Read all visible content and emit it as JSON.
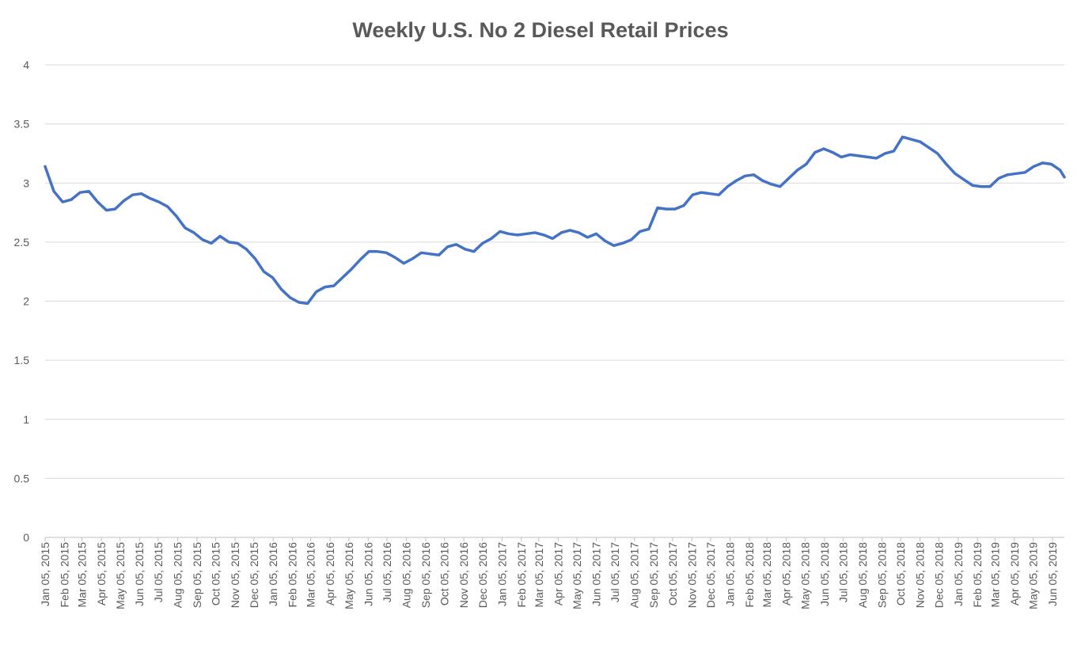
{
  "chart_data": {
    "type": "line",
    "title": "Weekly U.S. No 2 Diesel Retail Prices",
    "x": [
      "2015-01-05",
      "2015-01-19",
      "2015-02-02",
      "2015-02-16",
      "2015-03-02",
      "2015-03-16",
      "2015-03-30",
      "2015-04-13",
      "2015-04-27",
      "2015-05-11",
      "2015-05-25",
      "2015-06-08",
      "2015-06-22",
      "2015-07-06",
      "2015-07-20",
      "2015-08-03",
      "2015-08-17",
      "2015-08-31",
      "2015-09-14",
      "2015-09-28",
      "2015-10-12",
      "2015-10-26",
      "2015-11-09",
      "2015-11-23",
      "2015-12-07",
      "2015-12-21",
      "2016-01-04",
      "2016-01-18",
      "2016-02-01",
      "2016-02-15",
      "2016-02-29",
      "2016-03-14",
      "2016-03-28",
      "2016-04-11",
      "2016-04-25",
      "2016-05-09",
      "2016-05-23",
      "2016-06-06",
      "2016-06-20",
      "2016-07-04",
      "2016-07-18",
      "2016-08-01",
      "2016-08-15",
      "2016-08-29",
      "2016-09-12",
      "2016-09-26",
      "2016-10-10",
      "2016-10-24",
      "2016-11-07",
      "2016-11-21",
      "2016-12-05",
      "2016-12-19",
      "2017-01-02",
      "2017-01-16",
      "2017-01-30",
      "2017-02-13",
      "2017-02-27",
      "2017-03-13",
      "2017-03-27",
      "2017-04-10",
      "2017-04-24",
      "2017-05-08",
      "2017-05-22",
      "2017-06-05",
      "2017-06-19",
      "2017-07-03",
      "2017-07-17",
      "2017-07-31",
      "2017-08-14",
      "2017-08-28",
      "2017-09-11",
      "2017-09-25",
      "2017-10-09",
      "2017-10-23",
      "2017-11-06",
      "2017-11-20",
      "2017-12-04",
      "2017-12-18",
      "2018-01-01",
      "2018-01-15",
      "2018-01-29",
      "2018-02-12",
      "2018-02-26",
      "2018-03-12",
      "2018-03-26",
      "2018-04-09",
      "2018-04-23",
      "2018-05-07",
      "2018-05-21",
      "2018-06-04",
      "2018-06-18",
      "2018-07-02",
      "2018-07-16",
      "2018-07-30",
      "2018-08-13",
      "2018-08-27",
      "2018-09-10",
      "2018-09-24",
      "2018-10-08",
      "2018-10-22",
      "2018-11-05",
      "2018-11-19",
      "2018-12-03",
      "2018-12-17",
      "2018-12-31",
      "2019-01-14",
      "2019-01-28",
      "2019-02-11",
      "2019-02-25",
      "2019-03-11",
      "2019-03-25",
      "2019-04-08",
      "2019-04-22",
      "2019-05-06",
      "2019-05-20",
      "2019-06-03",
      "2019-06-17",
      "2019-06-24"
    ],
    "series": [
      {
        "name": "Weekly U.S. No 2 Diesel Retail Prices",
        "color": "#4472c4",
        "values": [
          3.14,
          2.93,
          2.84,
          2.86,
          2.92,
          2.93,
          2.84,
          2.77,
          2.78,
          2.85,
          2.9,
          2.91,
          2.87,
          2.84,
          2.8,
          2.72,
          2.62,
          2.58,
          2.52,
          2.49,
          2.55,
          2.5,
          2.49,
          2.44,
          2.36,
          2.25,
          2.2,
          2.1,
          2.03,
          1.99,
          1.98,
          2.08,
          2.12,
          2.13,
          2.2,
          2.27,
          2.35,
          2.42,
          2.42,
          2.41,
          2.37,
          2.32,
          2.36,
          2.41,
          2.4,
          2.39,
          2.46,
          2.48,
          2.44,
          2.42,
          2.49,
          2.53,
          2.59,
          2.57,
          2.56,
          2.57,
          2.58,
          2.56,
          2.53,
          2.58,
          2.6,
          2.58,
          2.54,
          2.57,
          2.51,
          2.47,
          2.49,
          2.52,
          2.59,
          2.61,
          2.79,
          2.78,
          2.78,
          2.81,
          2.9,
          2.92,
          2.91,
          2.9,
          2.97,
          3.02,
          3.06,
          3.07,
          3.02,
          2.99,
          2.97,
          3.04,
          3.11,
          3.16,
          3.26,
          3.29,
          3.26,
          3.22,
          3.24,
          3.23,
          3.22,
          3.21,
          3.25,
          3.27,
          3.39,
          3.37,
          3.35,
          3.3,
          3.25,
          3.16,
          3.08,
          3.03,
          2.98,
          2.97,
          2.97,
          3.04,
          3.07,
          3.08,
          3.09,
          3.14,
          3.17,
          3.16,
          3.11,
          3.05
        ]
      }
    ],
    "xlim": [
      "2015-01-05",
      "2019-06-24"
    ],
    "xticks": [
      {
        "value": "2015-01-05",
        "label": "Jan 05, 2015"
      },
      {
        "value": "2015-02-05",
        "label": "Feb 05, 2015"
      },
      {
        "value": "2015-03-05",
        "label": "Mar 05, 2015"
      },
      {
        "value": "2015-04-05",
        "label": "Apr 05, 2015"
      },
      {
        "value": "2015-05-05",
        "label": "May 05, 2015"
      },
      {
        "value": "2015-06-05",
        "label": "Jun 05, 2015"
      },
      {
        "value": "2015-07-05",
        "label": "Jul 05, 2015"
      },
      {
        "value": "2015-08-05",
        "label": "Aug 05, 2015"
      },
      {
        "value": "2015-09-05",
        "label": "Sep 05, 2015"
      },
      {
        "value": "2015-10-05",
        "label": "Oct 05, 2015"
      },
      {
        "value": "2015-11-05",
        "label": "Nov 05, 2015"
      },
      {
        "value": "2015-12-05",
        "label": "Dec 05, 2015"
      },
      {
        "value": "2016-01-05",
        "label": "Jan 05, 2016"
      },
      {
        "value": "2016-02-05",
        "label": "Feb 05, 2016"
      },
      {
        "value": "2016-03-05",
        "label": "Mar 05, 2016"
      },
      {
        "value": "2016-04-05",
        "label": "Apr 05, 2016"
      },
      {
        "value": "2016-05-05",
        "label": "May 05, 2016"
      },
      {
        "value": "2016-06-05",
        "label": "Jun 05, 2016"
      },
      {
        "value": "2016-07-05",
        "label": "Jul 05, 2016"
      },
      {
        "value": "2016-08-05",
        "label": "Aug 05, 2016"
      },
      {
        "value": "2016-09-05",
        "label": "Sep 05, 2016"
      },
      {
        "value": "2016-10-05",
        "label": "Oct 05, 2016"
      },
      {
        "value": "2016-11-05",
        "label": "Nov 05, 2016"
      },
      {
        "value": "2016-12-05",
        "label": "Dec 05, 2016"
      },
      {
        "value": "2017-01-05",
        "label": "Jan 05, 2017"
      },
      {
        "value": "2017-02-05",
        "label": "Feb 05, 2017"
      },
      {
        "value": "2017-03-05",
        "label": "Mar 05, 2017"
      },
      {
        "value": "2017-04-05",
        "label": "Apr 05, 2017"
      },
      {
        "value": "2017-05-05",
        "label": "May 05, 2017"
      },
      {
        "value": "2017-06-05",
        "label": "Jun 05, 2017"
      },
      {
        "value": "2017-07-05",
        "label": "Jul 05, 2017"
      },
      {
        "value": "2017-08-05",
        "label": "Aug 05, 2017"
      },
      {
        "value": "2017-09-05",
        "label": "Sep 05, 2017"
      },
      {
        "value": "2017-10-05",
        "label": "Oct 05, 2017"
      },
      {
        "value": "2017-11-05",
        "label": "Nov 05, 2017"
      },
      {
        "value": "2017-12-05",
        "label": "Dec 05, 2017"
      },
      {
        "value": "2018-01-05",
        "label": "Jan 05, 2018"
      },
      {
        "value": "2018-02-05",
        "label": "Feb 05, 2018"
      },
      {
        "value": "2018-03-05",
        "label": "Mar 05, 2018"
      },
      {
        "value": "2018-04-05",
        "label": "Apr 05, 2018"
      },
      {
        "value": "2018-05-05",
        "label": "May 05, 2018"
      },
      {
        "value": "2018-06-05",
        "label": "Jun 05, 2018"
      },
      {
        "value": "2018-07-05",
        "label": "Jul 05, 2018"
      },
      {
        "value": "2018-08-05",
        "label": "Aug 05, 2018"
      },
      {
        "value": "2018-09-05",
        "label": "Sep 05, 2018"
      },
      {
        "value": "2018-10-05",
        "label": "Oct 05, 2018"
      },
      {
        "value": "2018-11-05",
        "label": "Nov 05, 2018"
      },
      {
        "value": "2018-12-05",
        "label": "Dec 05, 2018"
      },
      {
        "value": "2019-01-05",
        "label": "Jan 05, 2019"
      },
      {
        "value": "2019-02-05",
        "label": "Feb 05, 2019"
      },
      {
        "value": "2019-03-05",
        "label": "Mar 05, 2019"
      },
      {
        "value": "2019-04-05",
        "label": "Apr 05, 2019"
      },
      {
        "value": "2019-05-05",
        "label": "May 05, 2019"
      },
      {
        "value": "2019-06-05",
        "label": "Jun 05, 2019"
      }
    ],
    "ylim": [
      0,
      4
    ],
    "yticks": [
      0,
      0.5,
      1,
      1.5,
      2,
      2.5,
      3,
      3.5,
      4
    ],
    "grid": true
  }
}
